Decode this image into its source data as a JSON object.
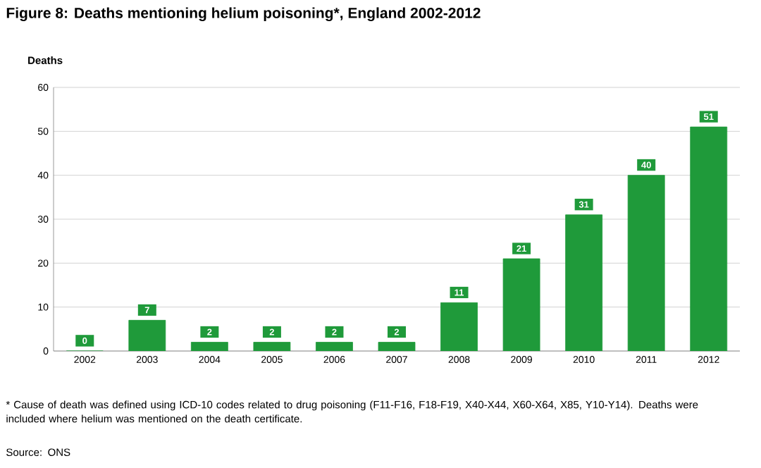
{
  "chart_data": {
    "type": "bar",
    "title": "Figure 8: Deaths mentioning helium poisoning*, England 2002-2012",
    "ylabel": "Deaths",
    "categories": [
      "2002",
      "2003",
      "2004",
      "2005",
      "2006",
      "2007",
      "2008",
      "2009",
      "2010",
      "2011",
      "2012"
    ],
    "values": [
      0,
      7,
      2,
      2,
      2,
      2,
      11,
      21,
      31,
      40,
      51
    ],
    "color": "#1f9a3a",
    "ylim": [
      0,
      60
    ],
    "yticks": [
      0,
      10,
      20,
      30,
      40,
      50,
      60
    ],
    "grid": "y",
    "data_labels": true,
    "annotations": [
      "* Cause of death was defined using ICD-10 codes related to drug poisoning  (F11-F16, F18-F19, X40-X44, X60-X64, X85, Y10-Y14).  Deaths were included where helium was mentioned on the death certificate.",
      "Source: ONS"
    ]
  }
}
